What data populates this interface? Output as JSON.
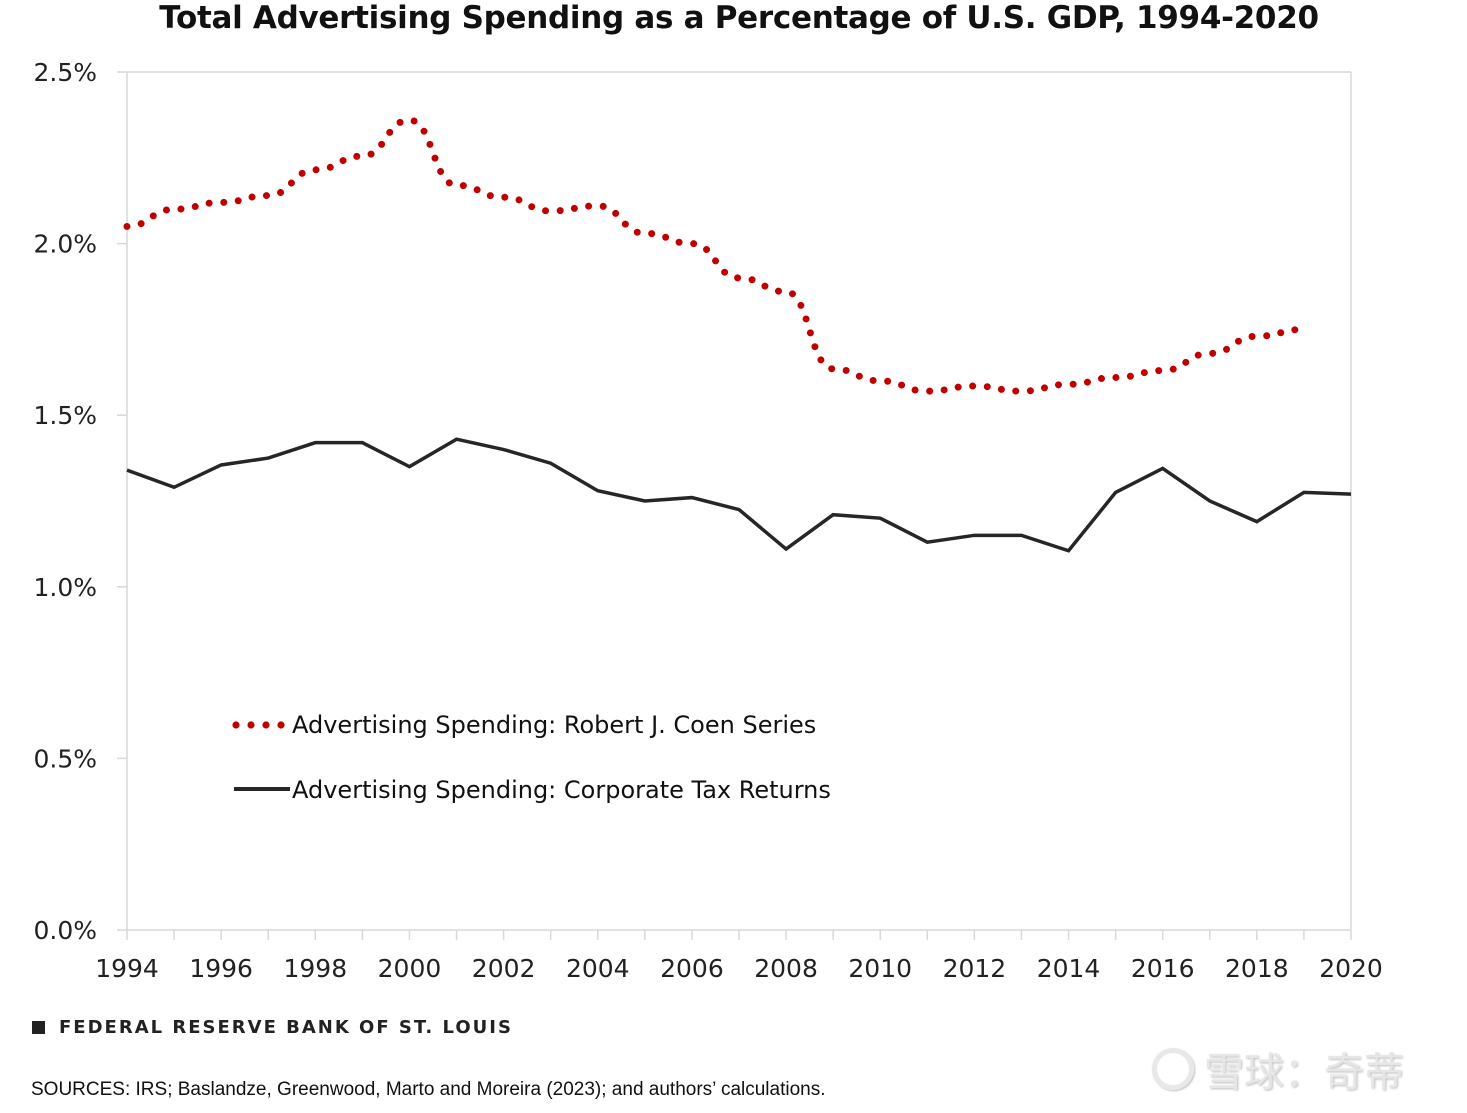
{
  "chart_data": {
    "type": "line",
    "title": "Total Advertising Spending as a Percentage of U.S. GDP, 1994-2020",
    "xlabel": "",
    "ylabel": "",
    "xlim": [
      1994,
      2020
    ],
    "ylim": [
      0,
      2.5
    ],
    "grid": false,
    "x_ticks": [
      "1994",
      "1996",
      "1998",
      "2000",
      "2002",
      "2004",
      "2006",
      "2008",
      "2010",
      "2012",
      "2014",
      "2016",
      "2018",
      "2020"
    ],
    "y_ticks": [
      "0.0%",
      "0.5%",
      "1.0%",
      "1.5%",
      "2.0%",
      "2.5%"
    ],
    "legend_position": "lower-left (inside plot)",
    "series": [
      {
        "name": "Advertising Spending: Robert J. Coen Series",
        "style": "dotted",
        "color": "#c00000",
        "x": [
          1994,
          1995,
          1996,
          1997,
          1998,
          1999,
          2000,
          2001,
          2002,
          2003,
          2004,
          2005,
          2006,
          2007,
          2008,
          2009,
          2010,
          2011,
          2012,
          2013,
          2014,
          2015,
          2016,
          2017,
          2018,
          2019
        ],
        "values": [
          2.05,
          2.1,
          2.12,
          2.14,
          2.215,
          2.255,
          2.36,
          2.17,
          2.135,
          2.095,
          2.11,
          2.03,
          2.0,
          1.9,
          1.86,
          1.635,
          1.6,
          1.57,
          1.585,
          1.57,
          1.59,
          1.61,
          1.63,
          1.68,
          1.73,
          1.75
        ]
      },
      {
        "name": "Advertising Spending: Corporate Tax Returns",
        "style": "solid",
        "color": "#262626",
        "x": [
          1994,
          1995,
          1996,
          1997,
          1998,
          1999,
          2000,
          2001,
          2002,
          2003,
          2004,
          2005,
          2006,
          2007,
          2008,
          2009,
          2010,
          2011,
          2012,
          2013,
          2014,
          2015,
          2016,
          2017,
          2018,
          2019,
          2020
        ],
        "values": [
          1.34,
          1.29,
          1.355,
          1.375,
          1.42,
          1.42,
          1.35,
          1.43,
          1.4,
          1.36,
          1.28,
          1.25,
          1.26,
          1.225,
          1.11,
          1.21,
          1.2,
          1.13,
          1.15,
          1.15,
          1.105,
          1.275,
          1.345,
          1.25,
          1.19,
          1.275,
          1.27
        ]
      }
    ]
  },
  "footer": {
    "branding": "FEDERAL RESERVE BANK OF ST. LOUIS",
    "sources": "SOURCES: IRS; Baslandze, Greenwood, Marto and Moreira (2023); and authors’ calculations."
  },
  "watermark": {
    "text": "雪球：奇蒂",
    "icon": "snowball-logo-icon"
  }
}
